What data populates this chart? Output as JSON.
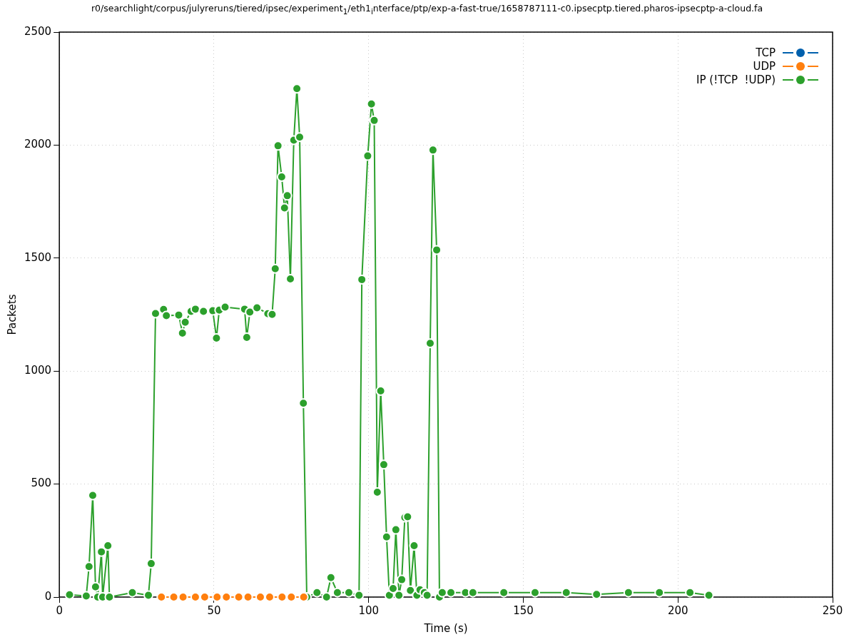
{
  "chart_data": {
    "type": "line",
    "title": "r0/searchlight/corpus/julyreruns/tiered/ipsec/experiment$_{1}$/eth1$_{i}$nterface/ptp/exp-a-fast-true/1658787111-c0.ipsecptp.tiered.pharos-ipsecptp-a-cloud.fa",
    "xlabel": "Time (s)",
    "ylabel": "Packets",
    "xlim": [
      0,
      250
    ],
    "xticks": [
      0,
      50,
      100,
      150,
      200,
      250
    ],
    "ylim": [
      0,
      2500
    ],
    "yticks": [
      0,
      500,
      1000,
      1500,
      2000,
      2500
    ],
    "grid": true,
    "legend": "top right",
    "marker": "circle",
    "line_style": "solid",
    "series": [
      {
        "name": "TCP",
        "color": "#0060ad"
      },
      {
        "name": "UDP",
        "color": "#ff7f0e",
        "type": "line",
        "x": [
          33,
          37,
          40,
          44,
          47,
          51,
          54,
          58,
          61,
          65,
          68,
          72,
          75,
          79
        ],
        "values": [
          0,
          0,
          0,
          0,
          0,
          0,
          0,
          0,
          0,
          0,
          0,
          0,
          0,
          0
        ]
      },
      {
        "name": "IP (!TCP  !UDP)",
        "color": "#2ca02c",
        "x": [
          3.3,
          8.7,
          9.6,
          10.8,
          11.7,
          12.4,
          13.6,
          14,
          15.7,
          16.2,
          23.6,
          28.8,
          29.7,
          31.1,
          33.7,
          34.6,
          38.6,
          39.8,
          40.7,
          42.6,
          44,
          46.6,
          49.6,
          50.8,
          51.7,
          53.6,
          59.9,
          60.6,
          61.6,
          63.9,
          67.4,
          68.8,
          69.8,
          70.7,
          71.9,
          72.8,
          73.7,
          74.7,
          75.8,
          76.8,
          77.7,
          78.9,
          80,
          83.3,
          86.4,
          87.8,
          89.9,
          93.6,
          96.9,
          97.8,
          99.7,
          100.9,
          101.8,
          102.8,
          103.9,
          104.9,
          105.8,
          106.7,
          107.9,
          108.8,
          109.8,
          110.7,
          111.7,
          112.6,
          113.5,
          114.7,
          115.6,
          116.6,
          118,
          118.9,
          119.9,
          120.8,
          122,
          122.9,
          123.8,
          126.6,
          131.3,
          133.7,
          143.7,
          153.8,
          163.9,
          173.7,
          184,
          194,
          203.9,
          210
        ],
        "values": [
          10,
          5,
          135,
          450,
          45,
          0,
          200,
          0,
          227,
          0,
          20,
          8,
          148,
          1255,
          1273,
          1245,
          1248,
          1168,
          1216,
          1264,
          1274,
          1264,
          1267,
          1146,
          1270,
          1283,
          1274,
          1149,
          1261,
          1280,
          1254,
          1251,
          1453,
          1997,
          1859,
          1722,
          1776,
          1408,
          2022,
          2250,
          2035,
          858,
          0,
          20,
          0,
          86,
          20,
          20,
          8,
          1405,
          1952,
          2182,
          2109,
          464,
          912,
          586,
          266,
          8,
          38,
          298,
          8,
          77,
          352,
          355,
          29,
          227,
          8,
          32,
          20,
          8,
          1123,
          1978,
          1536,
          0,
          20,
          20,
          20,
          20,
          20,
          20,
          20,
          12,
          20,
          20,
          20,
          8
        ]
      }
    ]
  }
}
